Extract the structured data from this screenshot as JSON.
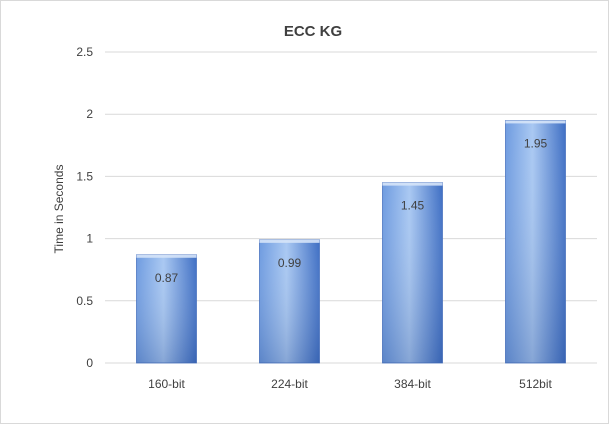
{
  "chart_data": {
    "type": "bar",
    "title": "ECC KG",
    "xlabel": "",
    "ylabel": "Time in Seconds",
    "categories": [
      "160-bit",
      "224-bit",
      "384-bit",
      "512bit"
    ],
    "values": [
      0.87,
      0.99,
      1.45,
      1.95
    ],
    "data_labels": [
      "0.87",
      "0.99",
      "1.45",
      "1.95"
    ],
    "ylim": [
      0,
      2.5
    ],
    "yticks": [
      "0",
      "0.5",
      "1",
      "1.5",
      "2",
      "2.5"
    ],
    "grid": true,
    "legend": "none",
    "bar_colors": {
      "light": "#a9c8f2",
      "mid": "#6e9be0",
      "dark": "#3f6fc4",
      "edge": "#4a74c0"
    },
    "grid_color": "#d9d9d9"
  }
}
